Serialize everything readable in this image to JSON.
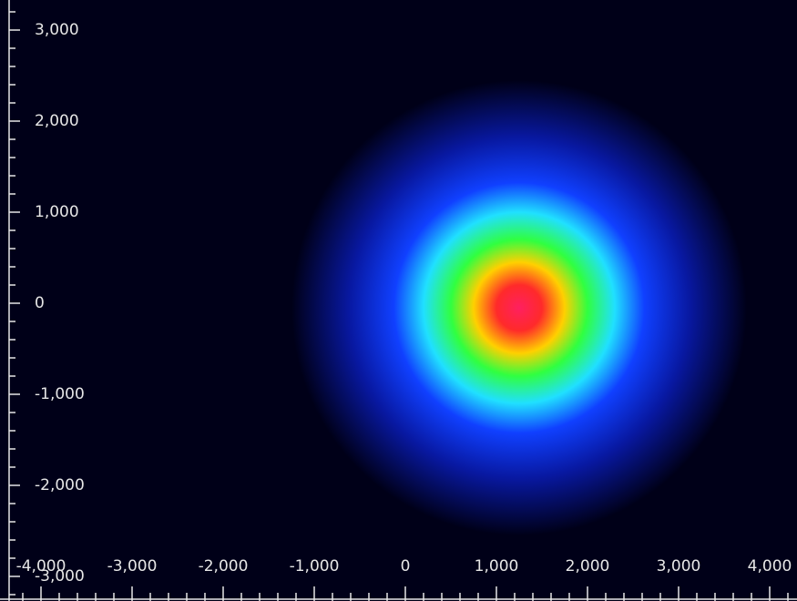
{
  "chart_data": {
    "type": "beam-profile",
    "xlim": [
      -4450,
      4300
    ],
    "ylim": [
      -3270,
      3330
    ],
    "xticks": [
      {
        "value": -4000,
        "label": "-4,000"
      },
      {
        "value": -3000,
        "label": "-3,000"
      },
      {
        "value": -2000,
        "label": "-2,000"
      },
      {
        "value": -1000,
        "label": "-1,000"
      },
      0,
      {
        "value": 1000,
        "label": "1,000"
      },
      {
        "value": 2000,
        "label": "2,000"
      },
      {
        "value": 3000,
        "label": "3,000"
      },
      {
        "value": 4000,
        "label": "4,000"
      }
    ],
    "yticks": [
      {
        "value": 3000,
        "label": "3,000"
      },
      {
        "value": 2000,
        "label": "2,000"
      },
      {
        "value": 1000,
        "label": "1,000"
      },
      0,
      {
        "value": -1000,
        "label": "-1,000"
      },
      {
        "value": -2000,
        "label": "-2,000"
      },
      {
        "value": -3000,
        "label": "-3,000"
      }
    ],
    "xminorticks": [
      -4200,
      -3800,
      -3600,
      -3400,
      -3200,
      -2800,
      -2600,
      -2400,
      -2200,
      -1800,
      -1600,
      -1400,
      -1200,
      -800,
      -600,
      -400,
      -200,
      200,
      400,
      600,
      800,
      1200,
      1400,
      1600,
      1800,
      2200,
      2400,
      2600,
      2800,
      3200,
      3400,
      3600,
      3800,
      4200
    ],
    "yminorticks": [
      3200,
      2800,
      2600,
      2400,
      2200,
      1800,
      1600,
      1400,
      1200,
      800,
      600,
      400,
      200,
      -200,
      -400,
      -600,
      -800,
      -1200,
      -1400,
      -1600,
      -1800,
      -2200,
      -2400,
      -2600,
      -2800,
      -3200
    ],
    "spot": {
      "x": 1250,
      "y": -50,
      "radius": 2500
    },
    "colormap": [
      "#ff2060",
      "#ff2a2a",
      "#ffd000",
      "#30ff40",
      "#20e0ff",
      "#1040ff",
      "#0818a0",
      "#000018"
    ],
    "background": "#000018"
  }
}
